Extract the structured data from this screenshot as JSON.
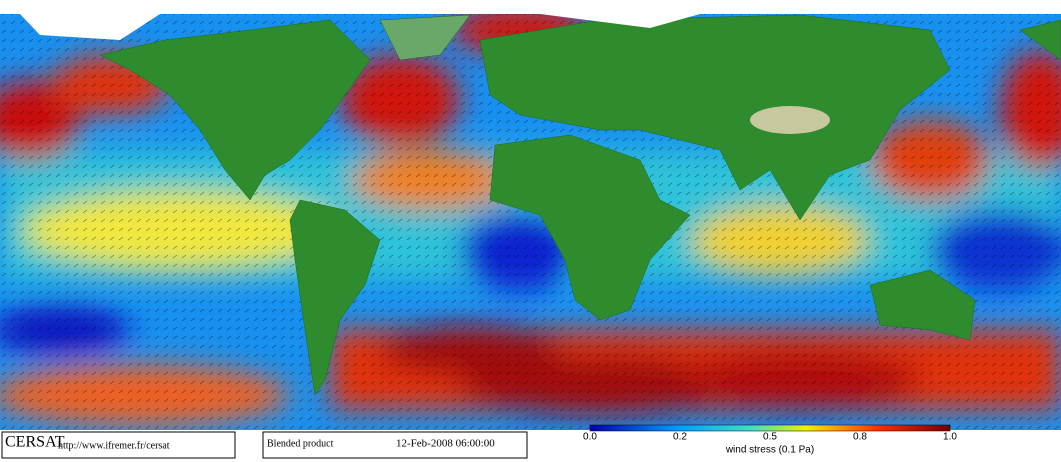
{
  "header": {
    "title": "CERSAT",
    "url": "http://www.ifremer.fr/cersat"
  },
  "product": {
    "name": "Blended product",
    "date": "12-Feb-2008 06:00:00"
  },
  "colorbar": {
    "ticks": [
      "0.0",
      "0.2",
      "0.5",
      "0.8",
      "1.0"
    ],
    "label": "wind stress (0.1 Pa)"
  }
}
